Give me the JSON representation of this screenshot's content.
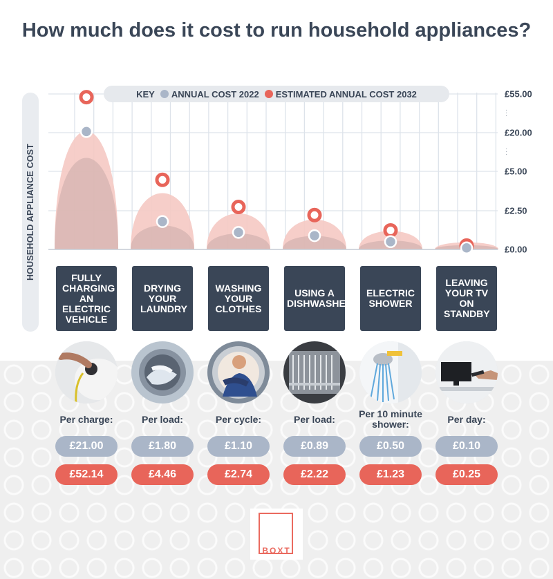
{
  "title": "How much does it cost to run household appliances?",
  "ylabel": "HOUSEHOLD APPLIANCE COST",
  "legend": {
    "key_label": "KEY",
    "series_2022": "ANNUAL COST 2022",
    "series_2032": "ESTIMATED ANNUAL COST 2032"
  },
  "y_ticks": [
    "£55.00",
    "£20.00",
    "£5.00",
    "£2.50",
    "£0.00"
  ],
  "colors": {
    "dark": "#3a4657",
    "series_2022": "#aab6c8",
    "series_2032": "#e8655a",
    "curve_2032": "#f5c9c3",
    "curve_2022": "#c9a9a7"
  },
  "categories": [
    {
      "label": "FULLY CHARGING AN ELECTRIC VEHICLE",
      "unit": "Per charge:",
      "v2022": "£21.00",
      "v2032": "£52.14",
      "icon": "electric-vehicle-charging-icon"
    },
    {
      "label": "DRYING YOUR LAUNDRY",
      "unit": "Per load:",
      "v2022": "£1.80",
      "v2032": "£4.46",
      "icon": "tumble-dryer-icon"
    },
    {
      "label": "WASHING YOUR CLOTHES",
      "unit": "Per cycle:",
      "v2022": "£1.10",
      "v2032": "£2.74",
      "icon": "washing-machine-icon"
    },
    {
      "label": "USING A DISHWASHER",
      "unit": "Per load:",
      "v2022": "£0.89",
      "v2032": "£2.22",
      "icon": "dishwasher-icon"
    },
    {
      "label": "ELECTRIC SHOWER",
      "unit": "Per 10 minute shower:",
      "v2022": "£0.50",
      "v2032": "£1.23",
      "icon": "shower-head-icon"
    },
    {
      "label": "LEAVING YOUR TV ON STANDBY",
      "unit": "Per day:",
      "v2022": "£0.10",
      "v2032": "£0.25",
      "icon": "tv-remote-icon"
    }
  ],
  "chart_data": {
    "type": "scatter",
    "title": "How much does it cost to run household appliances?",
    "ylabel": "HOUSEHOLD APPLIANCE COST",
    "xlabel": "",
    "categories": [
      "FULLY CHARGING AN ELECTRIC VEHICLE",
      "DRYING YOUR LAUNDRY",
      "WASHING YOUR CLOTHES",
      "USING A DISHWASHER",
      "ELECTRIC SHOWER",
      "LEAVING YOUR TV ON STANDBY"
    ],
    "y_scale": "piecewise (broken axis)",
    "y_ticks": [
      0,
      2.5,
      5,
      20,
      55
    ],
    "ylim": [
      0,
      55
    ],
    "grid": true,
    "legend_position": "top",
    "series": [
      {
        "name": "ANNUAL COST 2022",
        "values": [
          21.0,
          1.8,
          1.1,
          0.89,
          0.5,
          0.1
        ],
        "color": "#aab6c8"
      },
      {
        "name": "ESTIMATED ANNUAL COST 2032",
        "values": [
          52.14,
          4.46,
          2.74,
          2.22,
          1.23,
          0.25
        ],
        "color": "#e8655a"
      }
    ]
  },
  "brand": {
    "logo_text": "BOXT"
  }
}
